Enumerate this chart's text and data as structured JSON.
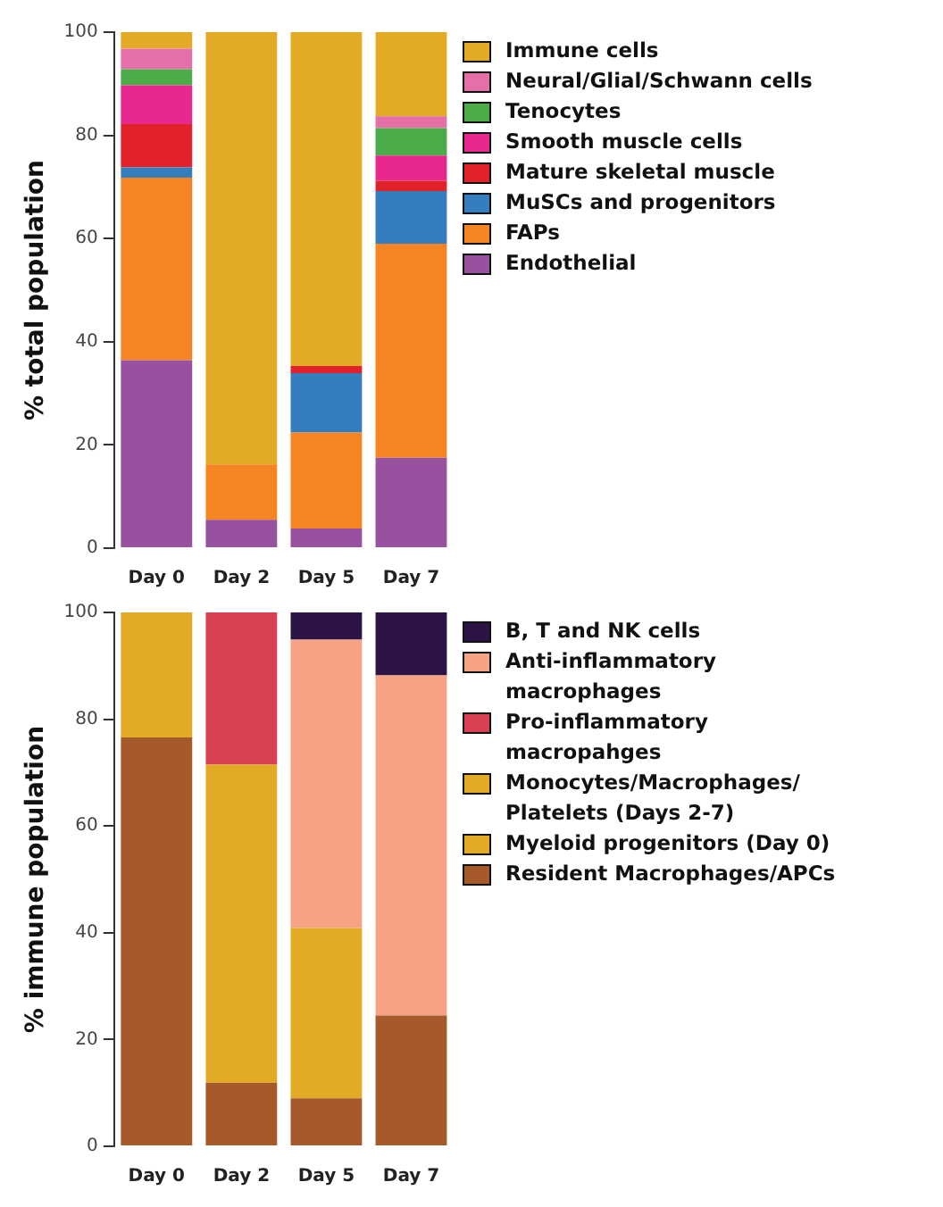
{
  "chart_data": [
    {
      "type": "bar",
      "stacked": true,
      "ylabel": "% total population",
      "categories": [
        "Day 0",
        "Day 2",
        "Day 5",
        "Day 7"
      ],
      "ylim": [
        0,
        100
      ],
      "yticks": [
        0,
        20,
        40,
        60,
        80,
        100
      ],
      "grid": false,
      "legend": "top right",
      "series": [
        {
          "name": "Endothelial",
          "color": "#97519e",
          "values": [
            36.4,
            5.5,
            3.8,
            17.5
          ]
        },
        {
          "name": "FAPs",
          "color": "#f58523",
          "values": [
            35.4,
            10.7,
            18.6,
            41.5
          ]
        },
        {
          "name": "MuSCs and progenitors",
          "color": "#357ebd",
          "values": [
            2.0,
            0,
            11.5,
            10.2
          ]
        },
        {
          "name": "Mature skeletal muscle",
          "color": "#e2222a",
          "values": [
            8.4,
            0,
            1.4,
            2.0
          ]
        },
        {
          "name": "Smooth muscle cells",
          "color": "#e8288e",
          "values": [
            7.5,
            0,
            0,
            4.9
          ]
        },
        {
          "name": "Tenocytes",
          "color": "#4aab48",
          "values": [
            3.1,
            0,
            0,
            5.3
          ]
        },
        {
          "name": "Neural/Glial/Schwann cells",
          "color": "#e56fa7",
          "values": [
            4.0,
            0,
            0,
            2.3
          ]
        },
        {
          "name": "Immune cells",
          "color": "#e3ab25",
          "values": [
            3.2,
            83.8,
            64.7,
            16.3
          ]
        }
      ]
    },
    {
      "type": "bar",
      "stacked": true,
      "ylabel": "% immune population",
      "categories": [
        "Day 0",
        "Day 2",
        "Day 5",
        "Day 7"
      ],
      "ylim": [
        0,
        100
      ],
      "yticks": [
        0,
        20,
        40,
        60,
        80,
        100
      ],
      "grid": false,
      "legend": "top right",
      "series": [
        {
          "name": "Resident Macrophages/APCs",
          "color": "#a65a2a",
          "values": [
            76.6,
            11.9,
            9.0,
            24.5
          ]
        },
        {
          "name": "Myeloid progenitors (Day 0)",
          "color": "#e3ab25",
          "values": [
            23.4,
            0,
            0,
            0
          ]
        },
        {
          "name": "Monocytes/Macrophages/Platelets (Days 2-7)",
          "color": "#e3ab25",
          "values": [
            0,
            59.6,
            31.9,
            0
          ]
        },
        {
          "name": "Pro-inflammatory macropahges",
          "color": "#d94152",
          "values": [
            0,
            28.5,
            0,
            0
          ]
        },
        {
          "name": "Anti-inflammatory macrophages",
          "color": "#f5a285",
          "values": [
            0,
            0,
            54.0,
            63.7
          ]
        },
        {
          "name": "B, T and NK cells",
          "color": "#2c1446",
          "values": [
            0,
            0,
            5.1,
            11.8
          ]
        }
      ]
    }
  ]
}
